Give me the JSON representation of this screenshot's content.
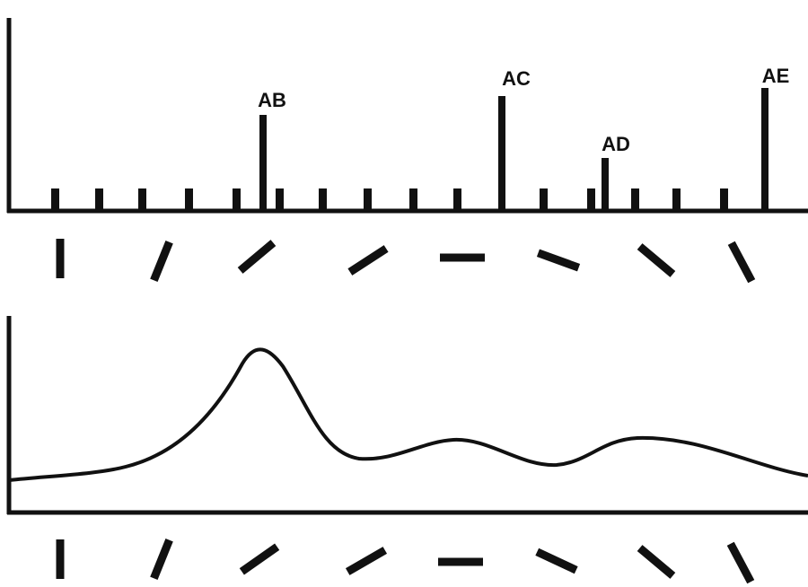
{
  "peaks": [
    "AB",
    "AC",
    "AD",
    "AE"
  ]
}
